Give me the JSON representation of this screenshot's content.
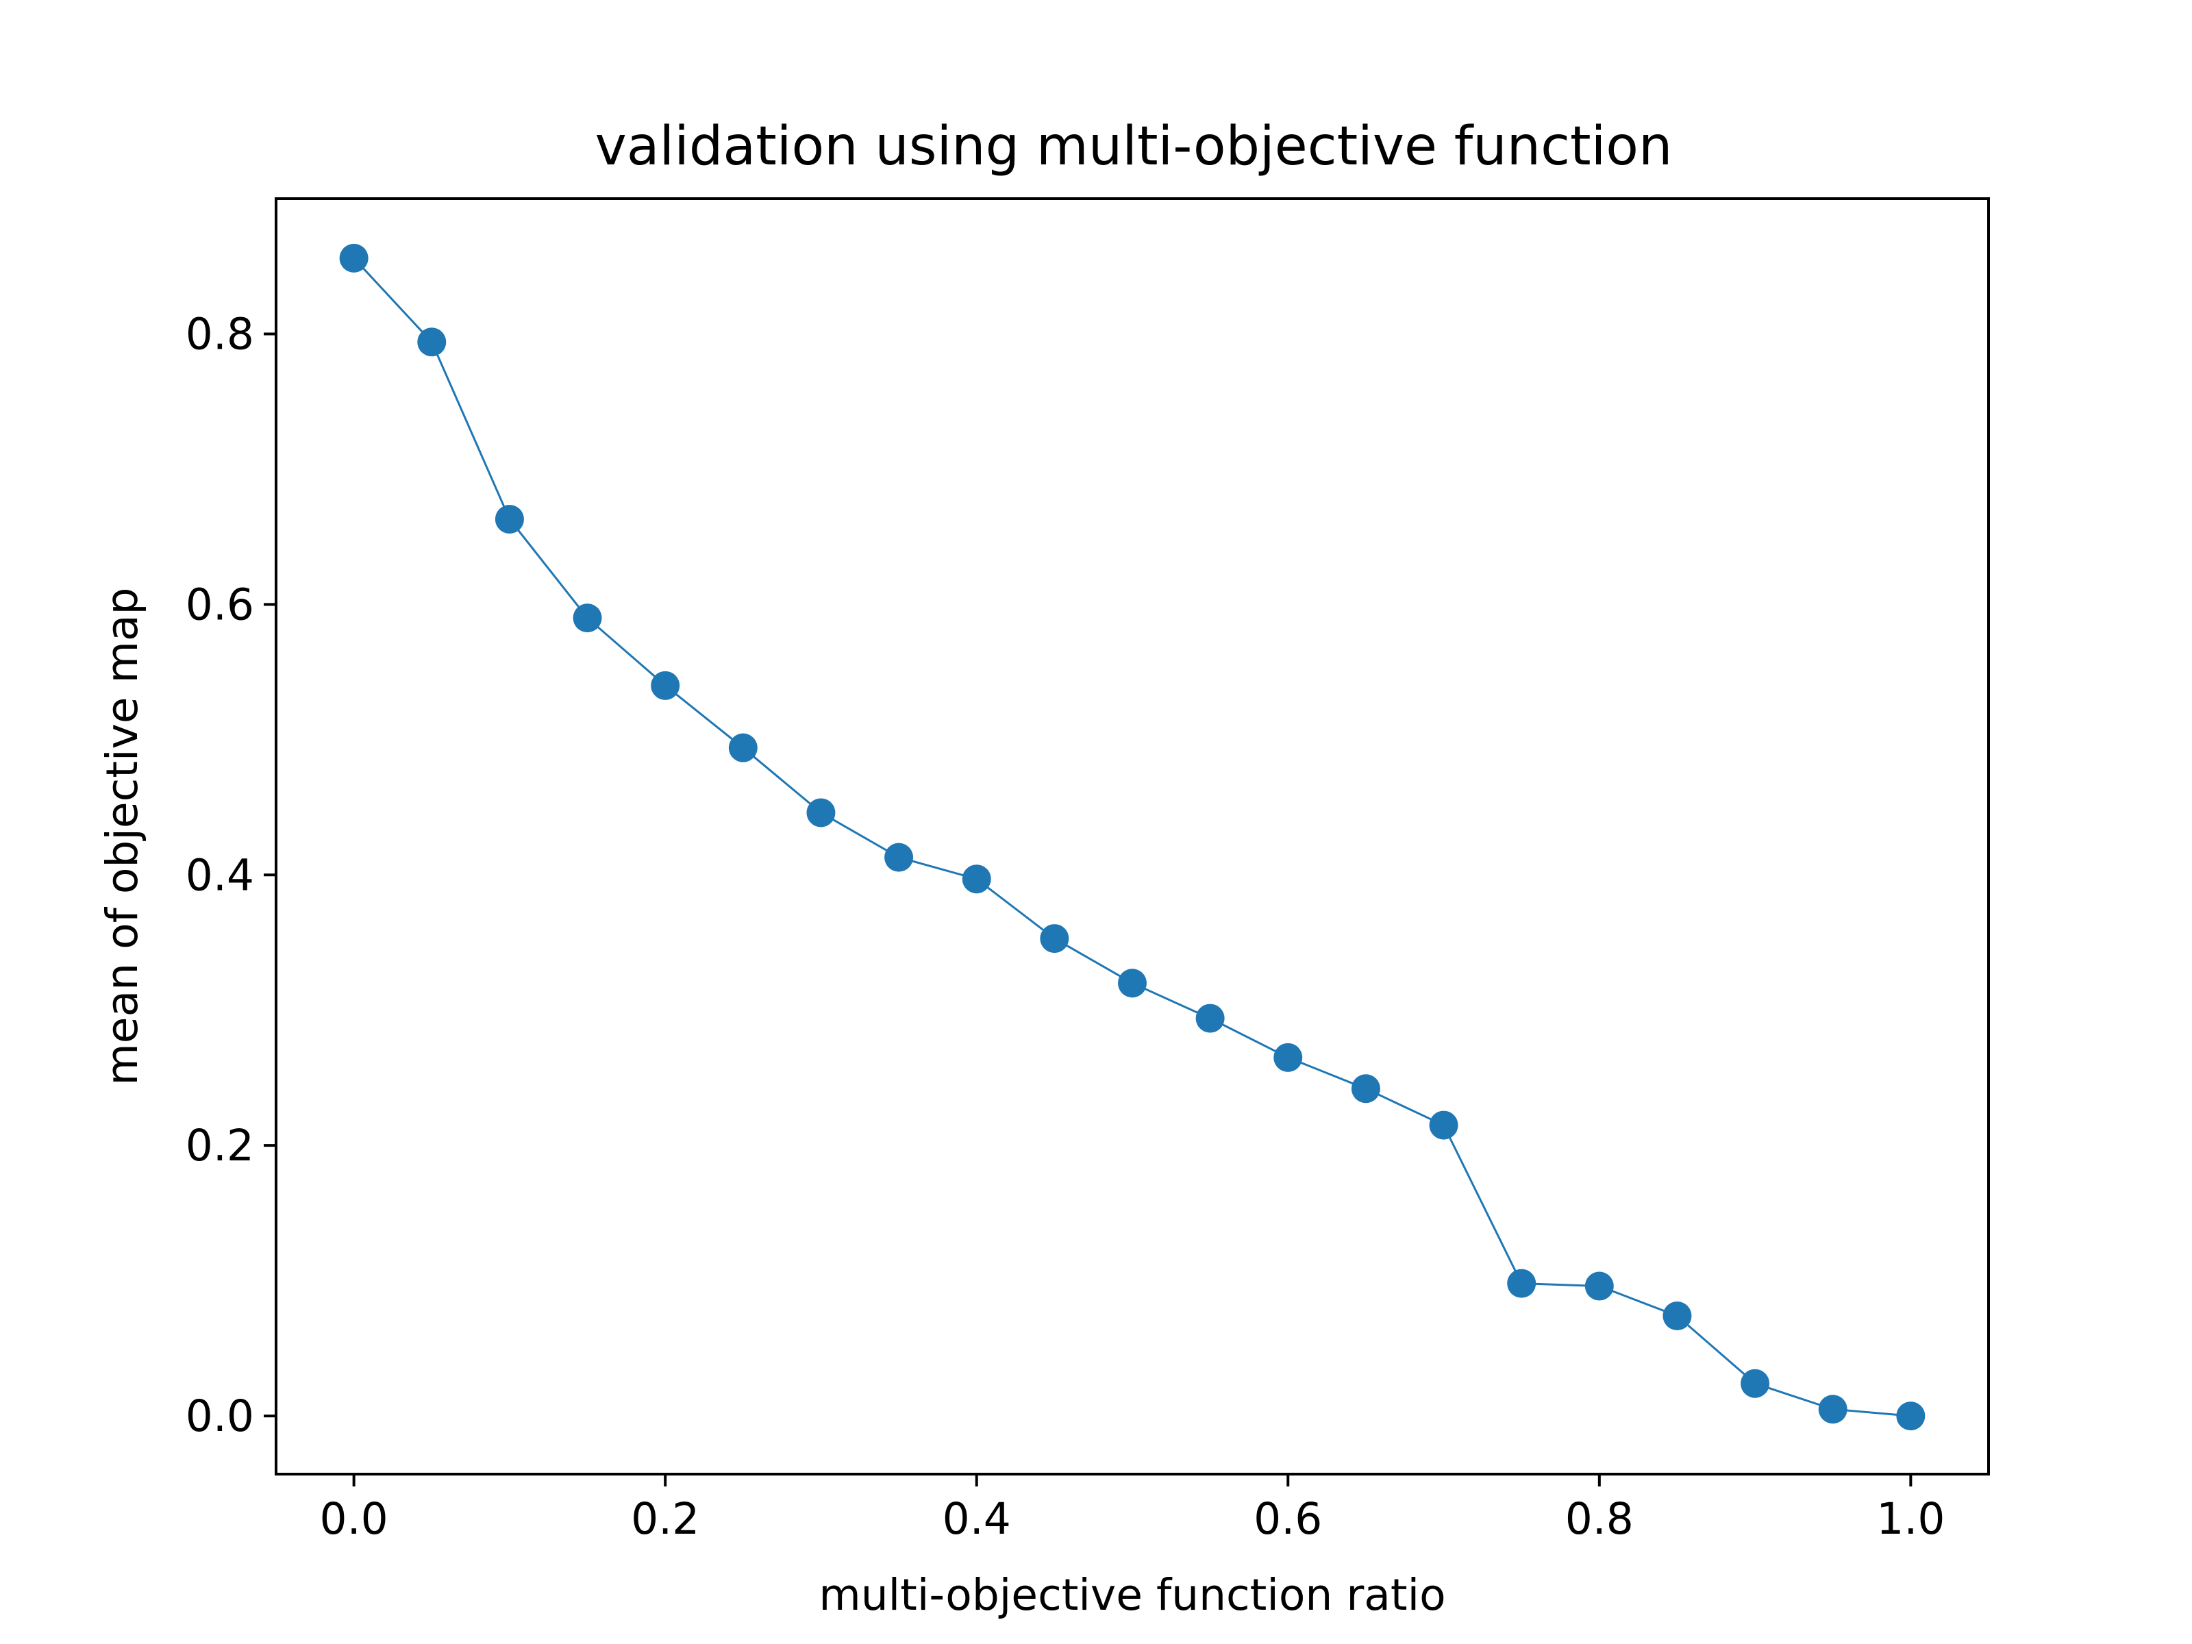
{
  "chart_data": {
    "type": "line",
    "title": "validation using multi-objective function",
    "xlabel": "multi-objective function ratio",
    "ylabel": "mean of objective map",
    "xlim": [
      -0.05,
      1.05
    ],
    "ylim": [
      -0.043,
      0.9
    ],
    "xticks": [
      0.0,
      0.2,
      0.4,
      0.6,
      0.8,
      1.0
    ],
    "xtick_labels": [
      "0.0",
      "0.2",
      "0.4",
      "0.6",
      "0.8",
      "1.0"
    ],
    "yticks": [
      0.0,
      0.2,
      0.4,
      0.6,
      0.8
    ],
    "ytick_labels": [
      "0.0",
      "0.2",
      "0.4",
      "0.6",
      "0.8"
    ],
    "grid": false,
    "series": [
      {
        "color": "#1f77b4",
        "marker": "circle",
        "x": [
          0.0,
          0.05,
          0.1,
          0.15,
          0.2,
          0.25,
          0.3,
          0.35,
          0.4,
          0.45,
          0.5,
          0.55,
          0.6,
          0.65,
          0.7,
          0.75,
          0.8,
          0.85,
          0.9,
          0.95,
          1.0
        ],
        "y": [
          0.856,
          0.794,
          0.663,
          0.59,
          0.54,
          0.494,
          0.446,
          0.413,
          0.397,
          0.353,
          0.32,
          0.294,
          0.265,
          0.242,
          0.215,
          0.098,
          0.096,
          0.074,
          0.024,
          0.005,
          0.0
        ]
      }
    ]
  }
}
